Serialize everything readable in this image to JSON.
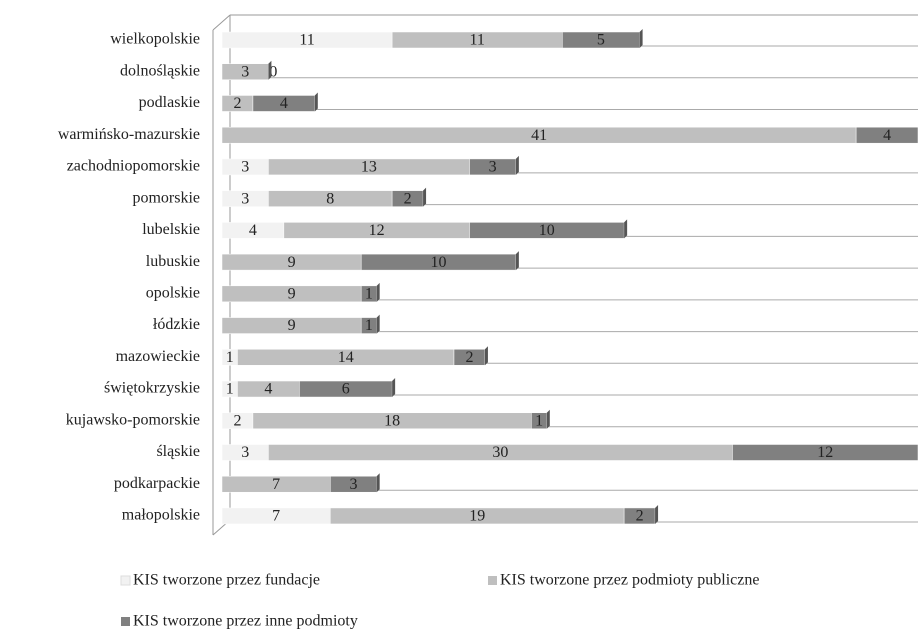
{
  "chart_data": {
    "type": "bar",
    "orientation": "horizontal",
    "stacked": true,
    "categories": [
      "wielkopolskie",
      "dolnośląskie",
      "podlaskie",
      "warmińsko-mazurskie",
      "zachodniopomorskie",
      "pomorskie",
      "lubelskie",
      "lubuskie",
      "opolskie",
      "łódzkie",
      "mazowieckie",
      "świętokrzyskie",
      "kujawsko-pomorskie",
      "śląskie",
      "podkarpackie",
      "małopolskie"
    ],
    "series": [
      {
        "name": "KIS tworzone przez fundacje",
        "color": "#f2f2f2",
        "values": [
          11,
          0,
          0,
          0,
          3,
          3,
          4,
          0,
          0,
          0,
          1,
          1,
          2,
          3,
          0,
          7
        ]
      },
      {
        "name": "KIS tworzone przez podmioty publiczne",
        "color": "#bfbfbf",
        "values": [
          11,
          3,
          2,
          41,
          13,
          8,
          12,
          9,
          9,
          9,
          14,
          4,
          18,
          30,
          7,
          19
        ]
      },
      {
        "name": "KIS tworzone przez inne podmioty",
        "color": "#808080",
        "values": [
          5,
          0,
          4,
          4,
          3,
          2,
          10,
          10,
          1,
          1,
          2,
          6,
          1,
          12,
          3,
          2
        ]
      }
    ],
    "xlim": [
      0,
      45
    ],
    "legend": "bottom"
  }
}
